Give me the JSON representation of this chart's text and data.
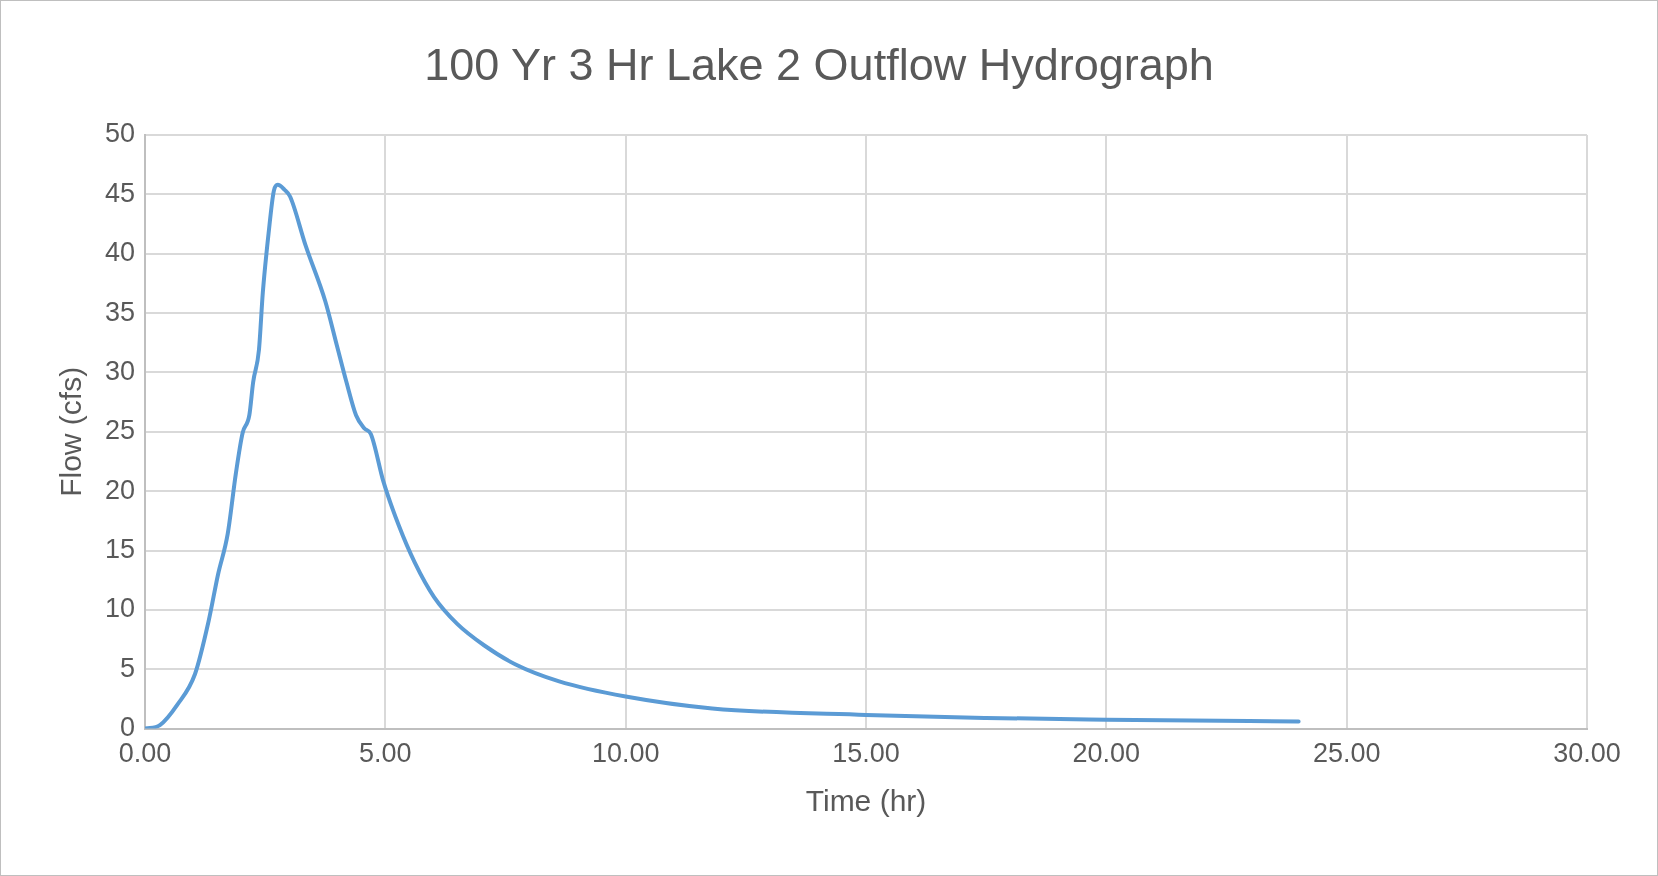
{
  "chart_data": {
    "type": "line",
    "title": "100 Yr 3 Hr Lake 2 Outflow Hydrograph",
    "xlabel": "Time (hr)",
    "ylabel": "Flow (cfs)",
    "series": [
      {
        "color": "#5b9bd5",
        "x": [
          0,
          0.31,
          0.67,
          1.04,
          1.32,
          1.52,
          1.72,
          1.89,
          2.03,
          2.17,
          2.25,
          2.37,
          2.45,
          2.57,
          2.68,
          2.76,
          2.9,
          3.02,
          3.34,
          3.75,
          3.99,
          4.19,
          4.39,
          4.56,
          4.7,
          4.96,
          5.28,
          5.61,
          6.01,
          6.5,
          7.06,
          7.71,
          8.6,
          10,
          11.8,
          15,
          17.5,
          20,
          24
        ],
        "values": [
          0,
          0.3,
          2,
          4.6,
          9,
          13,
          16.4,
          21.5,
          24.9,
          26.4,
          29.2,
          31.9,
          36.7,
          41.7,
          45.3,
          45.8,
          45.4,
          44.8,
          40.7,
          36,
          32.3,
          29.2,
          26.4,
          25.3,
          24.8,
          20.8,
          17.1,
          14,
          11.1,
          8.8,
          7,
          5.4,
          4,
          2.7,
          1.7,
          1.15,
          0.9,
          0.75,
          0.6
        ]
      }
    ],
    "xlim": [
      0,
      30
    ],
    "xticks": [
      {
        "value": 0,
        "label": "0.00"
      },
      {
        "value": 5,
        "label": "5.00"
      },
      {
        "value": 10,
        "label": "10.00"
      },
      {
        "value": 15,
        "label": "15.00"
      },
      {
        "value": 20,
        "label": "20.00"
      },
      {
        "value": 25,
        "label": "25.00"
      },
      {
        "value": 30,
        "label": "30.00"
      }
    ],
    "ylim": [
      0,
      50
    ],
    "yticks": [
      0,
      5,
      10,
      15,
      20,
      25,
      30,
      35,
      40,
      45,
      50
    ],
    "grid": true,
    "legend": false,
    "marker": "none",
    "line_style": "solid"
  }
}
